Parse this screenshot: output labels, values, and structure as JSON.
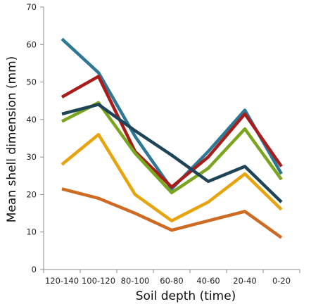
{
  "chart_data": {
    "type": "line",
    "title": "",
    "xlabel": "Soil depth (time)",
    "ylabel": "Mean shell dimension (mm)",
    "ylim": [
      0,
      70
    ],
    "yticks": [
      0,
      10,
      20,
      30,
      40,
      50,
      60,
      70
    ],
    "grid": false,
    "legend": "none",
    "categories": [
      "120-140",
      "100-120",
      "80-100",
      "60-80",
      "40-60",
      "20-40",
      "0-20"
    ],
    "series": [
      {
        "color": "#2f7894",
        "values": [
          61.5,
          52.5,
          35.5,
          21.5,
          31.5,
          42.5,
          25.5
        ]
      },
      {
        "color": "#a81c1c",
        "values": [
          46.0,
          51.5,
          31.5,
          22.0,
          30.0,
          41.5,
          27.5
        ]
      },
      {
        "color": "#7aa51f",
        "values": [
          39.5,
          44.5,
          31.0,
          20.5,
          27.0,
          37.5,
          24.0
        ]
      },
      {
        "color": "#1f4458",
        "values": [
          41.5,
          44.0,
          37.0,
          30.5,
          23.5,
          27.5,
          18.0
        ]
      },
      {
        "color": "#e8a40f",
        "values": [
          28.0,
          36.0,
          20.0,
          13.0,
          18.0,
          25.5,
          16.0
        ]
      },
      {
        "color": "#cf6a22",
        "values": [
          21.5,
          19.0,
          15.0,
          10.5,
          13.0,
          15.5,
          8.5
        ]
      }
    ]
  }
}
